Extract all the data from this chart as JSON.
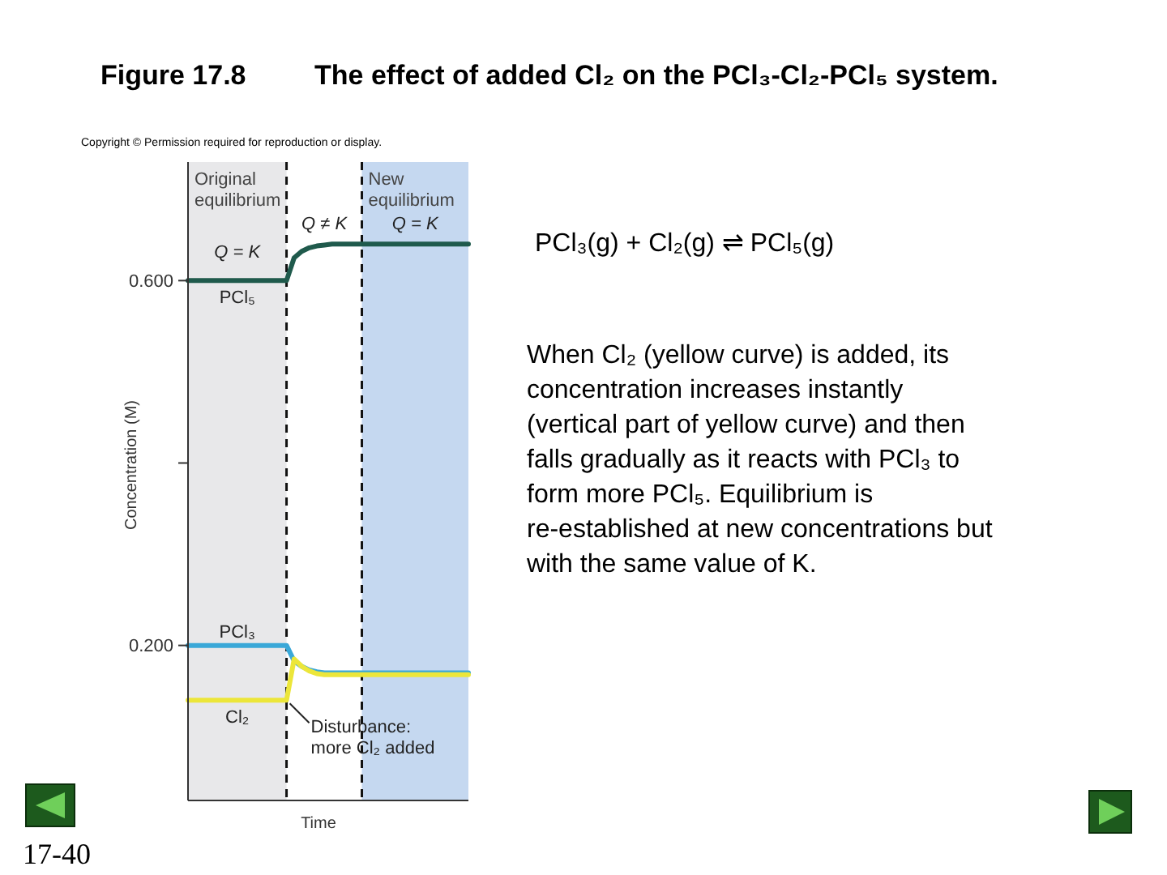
{
  "chart_data": {
    "type": "line",
    "subtitle": "Figure 17.8",
    "title": "The effect of added Cl₂ on the PCl₃-Cl₂-PCl₅ system.",
    "xlabel": "Time",
    "ylabel": "Concentration (M)",
    "categories": [
      null,
      null,
      null,
      null,
      null,
      null,
      null,
      null,
      null,
      null,
      null,
      null,
      null,
      null,
      null,
      null,
      null,
      null,
      null,
      null,
      null,
      null,
      null,
      null,
      null,
      null,
      null,
      null,
      null,
      null,
      null,
      null,
      null,
      null,
      null,
      null,
      null,
      null
    ],
    "ylim": [
      0.03,
      0.73
    ],
    "yticks": [
      {
        "value": 0.2,
        "label": "0.200"
      },
      {
        "value": 0.4,
        "label": null
      },
      {
        "value": 0.6,
        "label": "0.600"
      }
    ],
    "tick_labels": "y",
    "series": [
      {
        "name": "PCl₅",
        "color": "#1f5a4c",
        "values": [
          0.6,
          0.6,
          0.6,
          0.6,
          0.6,
          0.6,
          0.6,
          0.6,
          0.6,
          0.6,
          0.6,
          0.6,
          0.6,
          0.6,
          0.625,
          0.632,
          0.636,
          0.638,
          0.639,
          0.64,
          0.64,
          0.64,
          0.64,
          0.64,
          0.64,
          0.64,
          0.64,
          0.64,
          0.64,
          0.64,
          0.64,
          0.64,
          0.64,
          0.64,
          0.64,
          0.64,
          0.64,
          0.64
        ]
      },
      {
        "name": "PCl₃",
        "color": "#3aa8d8",
        "values": [
          0.2,
          0.2,
          0.2,
          0.2,
          0.2,
          0.2,
          0.2,
          0.2,
          0.2,
          0.2,
          0.2,
          0.2,
          0.2,
          0.2,
          0.183,
          0.177,
          0.173,
          0.171,
          0.17,
          0.17,
          0.17,
          0.17,
          0.17,
          0.17,
          0.17,
          0.17,
          0.17,
          0.17,
          0.17,
          0.17,
          0.17,
          0.17,
          0.17,
          0.17,
          0.17,
          0.17,
          0.17,
          0.17
        ]
      },
      {
        "name": "Cl₂",
        "color": "#ece63a",
        "values": [
          0.14,
          0.14,
          0.14,
          0.14,
          0.14,
          0.14,
          0.14,
          0.14,
          0.14,
          0.14,
          0.14,
          0.14,
          0.14,
          0.14,
          0.185,
          0.177,
          0.172,
          0.169,
          0.168,
          0.168,
          0.168,
          0.168,
          0.168,
          0.168,
          0.168,
          0.168,
          0.168,
          0.168,
          0.168,
          0.168,
          0.168,
          0.168,
          0.168,
          0.168,
          0.168,
          0.168,
          0.168,
          0.168
        ]
      }
    ],
    "annotations": [
      "Original equilibrium",
      "New equilibrium",
      "Q = K",
      "Q ≠ K",
      "Q = K",
      "Disturbance: more Cl₂ added",
      "Copyright © Permission required for reproduction or display.",
      "PCl₃(g)  +  Cl₂(g)  ⇌  PCl₅(g)",
      "When Cl₂ (yellow curve) is added, its concentration increases instantly (vertical part of yellow curve) and then falls gradually as it reacts with PCl₃ to form more PCl₅. Equilibrium is re-established at new concentrations but with the same value of K.",
      "17-40"
    ]
  }
}
